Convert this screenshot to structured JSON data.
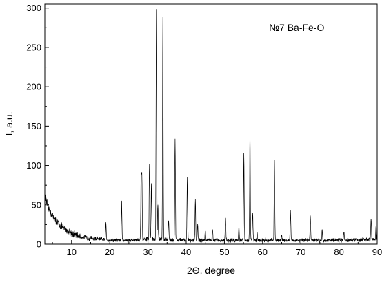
{
  "chart_data": {
    "type": "line",
    "title": "",
    "xlabel": "2Θ, degree",
    "ylabel": "I, a.u.",
    "annotation": "№7 Ba-Fe-O",
    "xlim": [
      3,
      90
    ],
    "ylim": [
      0,
      305
    ],
    "xticks": [
      10,
      20,
      30,
      40,
      50,
      60,
      70,
      80,
      90
    ],
    "yticks": [
      0,
      50,
      100,
      150,
      200,
      250,
      300
    ],
    "grid": false,
    "line_color": "#000000",
    "series": [
      {
        "background": [
          [
            3,
            62
          ],
          [
            4,
            45
          ],
          [
            5,
            36
          ],
          [
            6,
            29
          ],
          [
            7,
            24
          ],
          [
            8,
            20
          ],
          [
            9,
            17
          ],
          [
            10,
            14
          ],
          [
            12,
            10
          ],
          [
            14,
            8
          ],
          [
            16,
            7
          ],
          [
            18,
            6
          ],
          [
            20,
            5
          ],
          [
            25,
            5
          ],
          [
            30,
            6
          ],
          [
            35,
            6
          ],
          [
            40,
            5
          ],
          [
            50,
            5
          ],
          [
            60,
            5
          ],
          [
            70,
            5
          ],
          [
            80,
            5
          ],
          [
            90,
            6
          ]
        ],
        "peaks": [
          [
            19.0,
            27
          ],
          [
            23.1,
            53
          ],
          [
            28.2,
            85
          ],
          [
            28.4,
            88
          ],
          [
            30.4,
            104
          ],
          [
            30.9,
            78
          ],
          [
            32.2,
            298
          ],
          [
            32.6,
            50
          ],
          [
            33.9,
            286
          ],
          [
            35.4,
            32
          ],
          [
            37.1,
            133
          ],
          [
            40.3,
            87
          ],
          [
            42.4,
            57
          ],
          [
            43.0,
            25
          ],
          [
            45.0,
            18
          ],
          [
            46.9,
            19
          ],
          [
            50.3,
            33
          ],
          [
            53.8,
            24
          ],
          [
            55.1,
            116
          ],
          [
            56.7,
            143
          ],
          [
            57.4,
            40
          ],
          [
            58.6,
            14
          ],
          [
            63.1,
            108
          ],
          [
            65.0,
            12
          ],
          [
            67.3,
            42
          ],
          [
            72.5,
            36
          ],
          [
            75.6,
            18
          ],
          [
            81.3,
            16
          ],
          [
            88.4,
            33
          ],
          [
            89.7,
            25
          ]
        ]
      }
    ]
  }
}
